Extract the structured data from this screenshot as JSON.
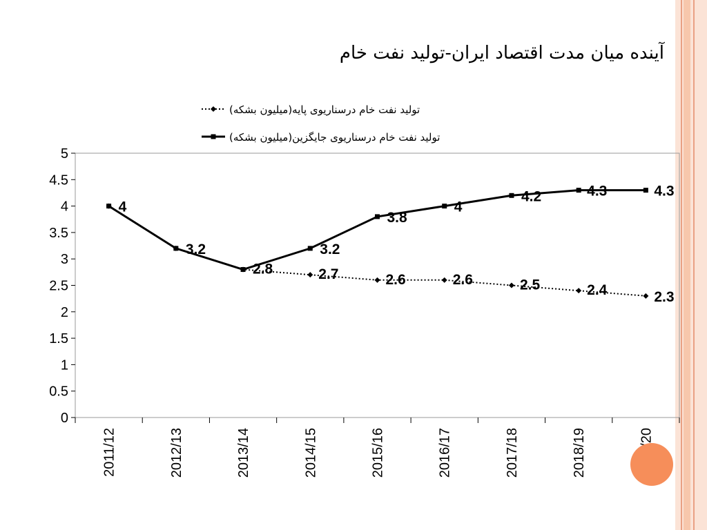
{
  "slide": {
    "title": "آینده میان مدت اقتصاد ایران-تولید نفت خام",
    "page_number": ""
  },
  "colors": {
    "stripe_light": "#fbe3d6",
    "stripe_mid": "#f7c7ac",
    "stripe_line": "#e9a083",
    "accent_circle": "#f68e5a",
    "plot_border": "#9a9a9a",
    "series_line": "#000000"
  },
  "chart_data": {
    "type": "line",
    "categories": [
      "2011/12",
      "2012/13",
      "2013/14",
      "2014/15",
      "2015/16",
      "2016/17",
      "2017/18",
      "2018/19",
      "2019/20"
    ],
    "ylim": [
      0,
      5
    ],
    "yticks": [
      "0",
      "0.5",
      "1",
      "1.5",
      "2",
      "2.5",
      "3",
      "3.5",
      "4",
      "4.5",
      "5"
    ],
    "grid": false,
    "legend_position": "top",
    "series": [
      {
        "name": "تولید نفت خام درسناریوی پایه(میلیون بشکه)",
        "style": "dotted-diamond",
        "values": [
          4,
          3.2,
          2.8,
          2.7,
          2.6,
          2.6,
          2.5,
          2.4,
          2.3
        ],
        "labels": [
          "",
          "",
          "2.8",
          "2.7",
          "2.6",
          "2.6",
          "2.5",
          "2.4",
          "2.3"
        ]
      },
      {
        "name": "تولید نفت خام درسناریوی جایگزین(میلیون بشکه)",
        "style": "solid-square",
        "values": [
          4,
          3.2,
          2.8,
          3.2,
          3.8,
          4,
          4.2,
          4.3,
          4.3
        ],
        "labels": [
          "4",
          "3.2",
          "",
          "3.2",
          "3.8",
          "4",
          "4.2",
          "4.3",
          "4.3"
        ]
      }
    ]
  }
}
